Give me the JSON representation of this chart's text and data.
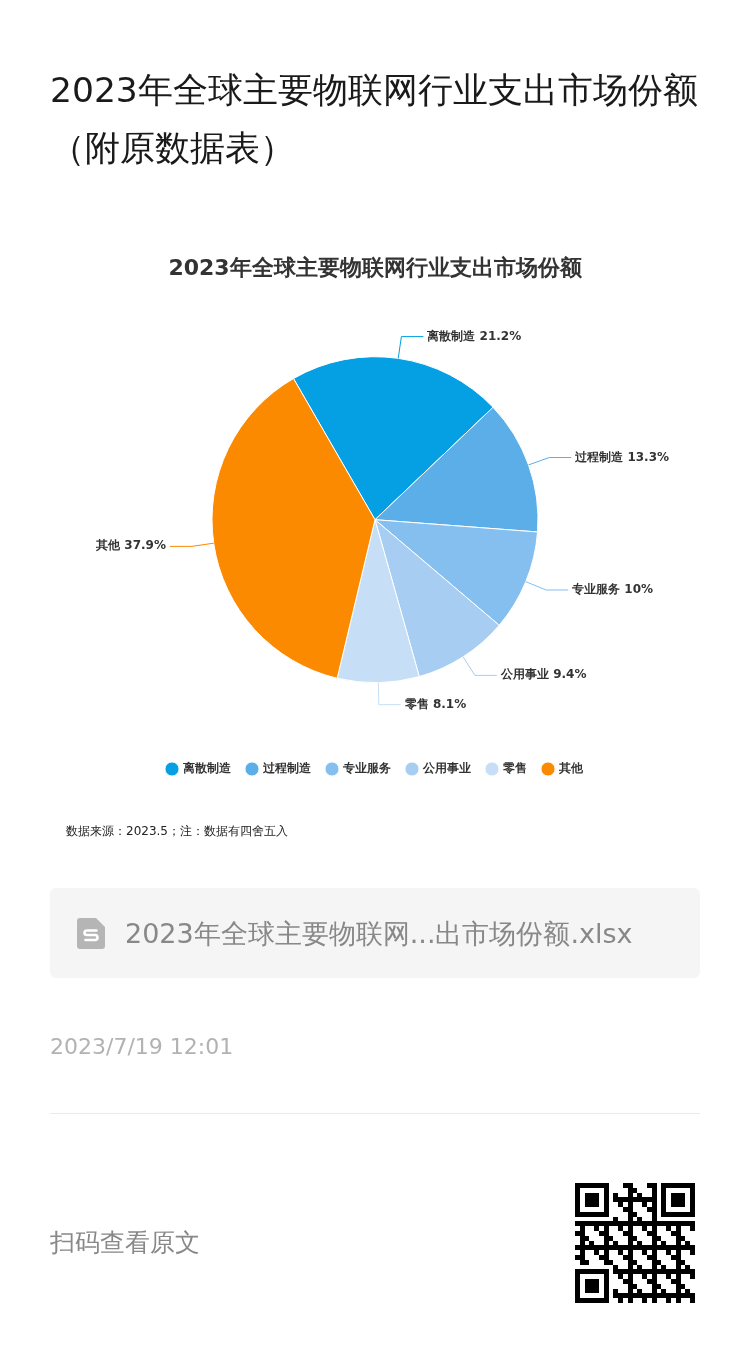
{
  "chart_data": {
    "type": "pie",
    "title": "2023年全球主要物联网行业支出市场份额（附原数据表）",
    "subtitle": "2023年全球主要物联网行业支出市场份额",
    "categories": [
      "离散制造",
      "过程制造",
      "专业服务",
      "公用事业",
      "零售",
      "其他"
    ],
    "values": [
      21.2,
      13.3,
      10,
      9.4,
      8.1,
      37.9
    ],
    "value_labels": [
      "21.2%",
      "13.3%",
      "10%",
      "9.4%",
      "8.1%",
      "37.9%"
    ],
    "colors": [
      "#04a0e3",
      "#5caee9",
      "#85bff0",
      "#a7cdf3",
      "#c6dff6",
      "#fb8a00"
    ],
    "legend": "bottom",
    "annotations": [
      "数据来源：2023.5；注：数据有四舍五入",
      "2023年全球主要物联网...出市场份额.xlsx",
      "2023/7/19 12:01",
      "扫码查看原文"
    ]
  }
}
